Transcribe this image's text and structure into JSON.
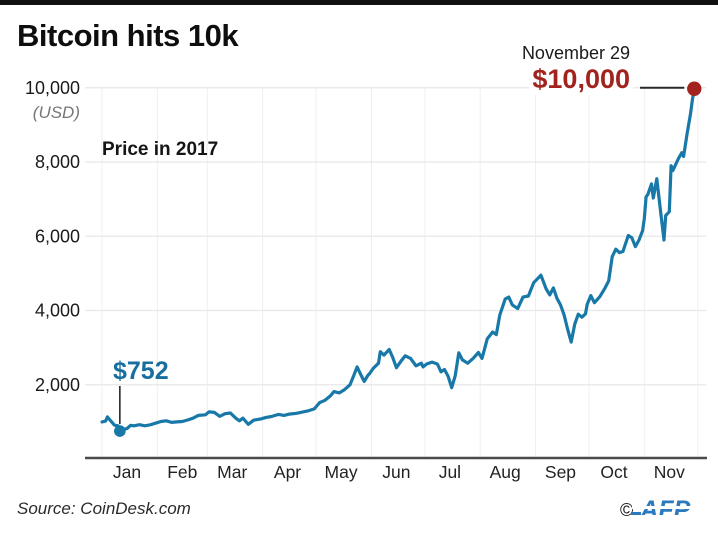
{
  "page": {
    "title": "Bitcoin hits 10k",
    "source": "Source: CoinDesk.com",
    "copyright_symbol": "©",
    "logo_text": "AFP"
  },
  "chart_data": {
    "type": "line",
    "title": "Bitcoin hits 10k",
    "subtitle": "Price in 2017",
    "unit_label": "(USD)",
    "series_name": "Bitcoin price in USD, 2017",
    "x_tick_labels": [
      "Jan",
      "Feb",
      "Mar",
      "Apr",
      "May",
      "Jun",
      "Jul",
      "Aug",
      "Sep",
      "Oct",
      "Nov"
    ],
    "month_start_days": [
      1,
      32,
      60,
      91,
      121,
      152,
      182,
      213,
      244,
      274,
      305,
      335
    ],
    "y_ticks": [
      2000,
      4000,
      6000,
      8000,
      10000
    ],
    "y_tick_labels": [
      "2,000",
      "4,000",
      "6,000",
      "8,000",
      "10,000"
    ],
    "ylim": [
      0,
      10000
    ],
    "grid": true,
    "annotations": {
      "low": {
        "label": "$752",
        "date": "Jan 11",
        "day": 11,
        "value": 752
      },
      "end": {
        "date_label": "November 29",
        "label": "$10,000",
        "day": 333,
        "value": 10000
      }
    },
    "colors": {
      "line": "#1878a8",
      "low_dot": "#1878a8",
      "end_dot": "#a2231e",
      "end_value_text": "#a2231e",
      "low_label_text": "#186f9f",
      "grid": "#e7e7e7",
      "axis": "#4a4a4a",
      "leader": "#2a2a2a",
      "logo_blue": "#2b7abd"
    },
    "points": [
      [
        1,
        1000
      ],
      [
        3,
        1020
      ],
      [
        4,
        1135
      ],
      [
        6,
        1020
      ],
      [
        8,
        910
      ],
      [
        10,
        895
      ],
      [
        11,
        752
      ],
      [
        13,
        800
      ],
      [
        15,
        820
      ],
      [
        17,
        905
      ],
      [
        19,
        895
      ],
      [
        22,
        925
      ],
      [
        25,
        895
      ],
      [
        28,
        920
      ],
      [
        31,
        965
      ],
      [
        34,
        1010
      ],
      [
        37,
        1030
      ],
      [
        40,
        985
      ],
      [
        43,
        1000
      ],
      [
        46,
        1010
      ],
      [
        49,
        1050
      ],
      [
        52,
        1100
      ],
      [
        55,
        1175
      ],
      [
        59,
        1190
      ],
      [
        61,
        1270
      ],
      [
        64,
        1255
      ],
      [
        67,
        1150
      ],
      [
        70,
        1220
      ],
      [
        73,
        1240
      ],
      [
        76,
        1100
      ],
      [
        78,
        1030
      ],
      [
        80,
        1100
      ],
      [
        83,
        935
      ],
      [
        86,
        1045
      ],
      [
        90,
        1080
      ],
      [
        93,
        1120
      ],
      [
        96,
        1145
      ],
      [
        100,
        1200
      ],
      [
        103,
        1175
      ],
      [
        106,
        1210
      ],
      [
        110,
        1230
      ],
      [
        113,
        1260
      ],
      [
        116,
        1290
      ],
      [
        120,
        1350
      ],
      [
        123,
        1520
      ],
      [
        126,
        1580
      ],
      [
        129,
        1700
      ],
      [
        131,
        1815
      ],
      [
        134,
        1780
      ],
      [
        137,
        1870
      ],
      [
        140,
        2000
      ],
      [
        142,
        2230
      ],
      [
        144,
        2480
      ],
      [
        146,
        2280
      ],
      [
        148,
        2090
      ],
      [
        150,
        2250
      ],
      [
        151,
        2300
      ],
      [
        153,
        2440
      ],
      [
        156,
        2580
      ],
      [
        157,
        2890
      ],
      [
        159,
        2800
      ],
      [
        162,
        2950
      ],
      [
        164,
        2730
      ],
      [
        166,
        2460
      ],
      [
        169,
        2660
      ],
      [
        171,
        2780
      ],
      [
        174,
        2710
      ],
      [
        177,
        2510
      ],
      [
        180,
        2580
      ],
      [
        181,
        2480
      ],
      [
        183,
        2560
      ],
      [
        186,
        2610
      ],
      [
        189,
        2560
      ],
      [
        191,
        2350
      ],
      [
        193,
        2410
      ],
      [
        195,
        2230
      ],
      [
        197,
        1920
      ],
      [
        199,
        2240
      ],
      [
        201,
        2860
      ],
      [
        203,
        2670
      ],
      [
        206,
        2580
      ],
      [
        209,
        2710
      ],
      [
        212,
        2870
      ],
      [
        214,
        2710
      ],
      [
        217,
        3240
      ],
      [
        220,
        3420
      ],
      [
        222,
        3350
      ],
      [
        224,
        3880
      ],
      [
        227,
        4310
      ],
      [
        229,
        4360
      ],
      [
        231,
        4150
      ],
      [
        234,
        4050
      ],
      [
        237,
        4360
      ],
      [
        240,
        4390
      ],
      [
        243,
        4750
      ],
      [
        247,
        4950
      ],
      [
        250,
        4580
      ],
      [
        252,
        4420
      ],
      [
        254,
        4610
      ],
      [
        256,
        4330
      ],
      [
        258,
        4150
      ],
      [
        260,
        3880
      ],
      [
        262,
        3500
      ],
      [
        264,
        3150
      ],
      [
        266,
        3640
      ],
      [
        268,
        3900
      ],
      [
        270,
        3820
      ],
      [
        272,
        3910
      ],
      [
        273,
        4170
      ],
      [
        275,
        4400
      ],
      [
        277,
        4210
      ],
      [
        280,
        4370
      ],
      [
        283,
        4610
      ],
      [
        285,
        4800
      ],
      [
        287,
        5450
      ],
      [
        289,
        5650
      ],
      [
        291,
        5560
      ],
      [
        293,
        5590
      ],
      [
        296,
        6020
      ],
      [
        298,
        5960
      ],
      [
        300,
        5720
      ],
      [
        302,
        5900
      ],
      [
        304,
        6150
      ],
      [
        305,
        6470
      ],
      [
        306,
        7060
      ],
      [
        307,
        7130
      ],
      [
        309,
        7410
      ],
      [
        310,
        7030
      ],
      [
        312,
        7550
      ],
      [
        314,
        6710
      ],
      [
        316,
        5900
      ],
      [
        317,
        6560
      ],
      [
        319,
        6660
      ],
      [
        320,
        7900
      ],
      [
        321,
        7770
      ],
      [
        324,
        8080
      ],
      [
        326,
        8250
      ],
      [
        327,
        8150
      ],
      [
        329,
        8780
      ],
      [
        331,
        9330
      ],
      [
        332,
        9700
      ],
      [
        333,
        9950
      ]
    ]
  }
}
